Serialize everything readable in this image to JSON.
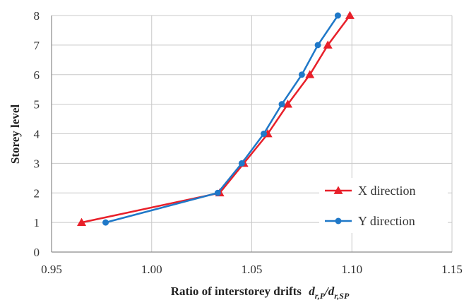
{
  "chart_data": {
    "type": "line",
    "xlabel": "Ratio of interstorey drifts",
    "xlabel_math": "d_{r,P}/d_{r,SP}",
    "ylabel": "Storey level",
    "xlim": [
      0.95,
      1.15
    ],
    "ylim": [
      0,
      8
    ],
    "x_ticks": [
      "0.95",
      "1.00",
      "1.05",
      "1.10",
      "1.15"
    ],
    "y_ticks": [
      "0",
      "1",
      "2",
      "3",
      "4",
      "5",
      "6",
      "7",
      "8"
    ],
    "grid": true,
    "legend_position": "right",
    "series": [
      {
        "name": "X direction",
        "color": "#e8202a",
        "marker": "triangle",
        "x": [
          0.965,
          1.034,
          1.046,
          1.058,
          1.068,
          1.079,
          1.088,
          1.099
        ],
        "y": [
          1,
          2,
          3,
          4,
          5,
          6,
          7,
          8
        ]
      },
      {
        "name": "Y direction",
        "color": "#1f78c8",
        "marker": "circle",
        "x": [
          0.977,
          1.033,
          1.045,
          1.056,
          1.065,
          1.075,
          1.083,
          1.093
        ],
        "y": [
          1,
          2,
          3,
          4,
          5,
          6,
          7,
          8
        ]
      }
    ]
  }
}
